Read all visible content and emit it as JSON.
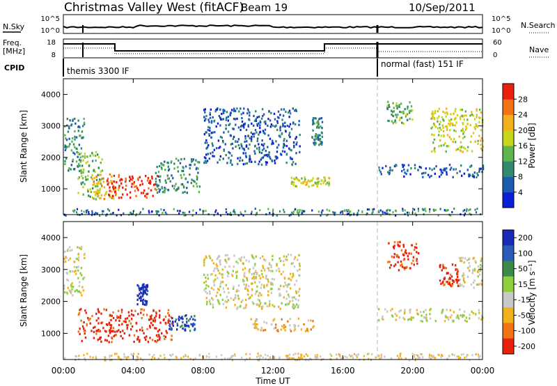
{
  "header": {
    "title": "Christmas Valley West (fitACF)",
    "beam": "Beam 19",
    "date": "10/Sep/2011"
  },
  "noise_panel": {
    "left_label": "N.Sky",
    "left_ticks": [
      "10^5",
      "10^0"
    ],
    "right_ticks": [
      "10^5",
      "10^0"
    ],
    "right_label": "N.Search"
  },
  "freq_panel": {
    "left_label_1": "Freq.",
    "left_label_2": "[MHz]",
    "left_ticks": [
      "18",
      "8"
    ],
    "right_ticks": [
      "60",
      "0"
    ],
    "right_label": "Nave"
  },
  "cpid_panel": {
    "label": "CPID",
    "mode_1": "themis 3300 IF",
    "mode_2": "normal (fast) 151 IF"
  },
  "chart_data": [
    {
      "type": "heatmap",
      "name": "power",
      "ylabel": "Slant Range [km]",
      "y_ticks": [
        "1000",
        "2000",
        "3000",
        "4000"
      ],
      "ylim": [
        180,
        4500
      ],
      "xlim_hours": [
        0,
        24
      ],
      "colorbar_label": "Power [dB]",
      "colorbar_ticks": [
        "4",
        "8",
        "12",
        "16",
        "20",
        "24",
        "28"
      ],
      "colorbar_colors": [
        "#0a1fd6",
        "#1c5cb0",
        "#2f8a6e",
        "#5fb54c",
        "#c8d61a",
        "#f2b01c",
        "#f07414",
        "#e8200c"
      ],
      "regions": [
        {
          "t0": 0.0,
          "t1": 1.2,
          "r0": 1600,
          "r1": 3300,
          "level": 2
        },
        {
          "t0": 0.8,
          "t1": 2.2,
          "r0": 700,
          "r1": 2200,
          "level": 3
        },
        {
          "t0": 1.6,
          "t1": 3.2,
          "r0": 700,
          "r1": 1500,
          "level": 5
        },
        {
          "t0": 2.4,
          "t1": 5.4,
          "r0": 750,
          "r1": 1450,
          "level": 7
        },
        {
          "t0": 5.2,
          "t1": 7.8,
          "r0": 900,
          "r1": 2000,
          "level": 2
        },
        {
          "t0": 8.0,
          "t1": 13.5,
          "r0": 1800,
          "r1": 3600,
          "level": 1
        },
        {
          "t0": 13.0,
          "t1": 15.2,
          "r0": 1100,
          "r1": 1400,
          "level": 4
        },
        {
          "t0": 14.2,
          "t1": 14.8,
          "r0": 2400,
          "r1": 3300,
          "level": 2
        },
        {
          "t0": 18.0,
          "t1": 24.0,
          "r0": 1400,
          "r1": 1800,
          "level": 1
        },
        {
          "t0": 18.5,
          "t1": 20.0,
          "r0": 3100,
          "r1": 3800,
          "level": 3
        },
        {
          "t0": 21.0,
          "t1": 24.0,
          "r0": 2200,
          "r1": 3600,
          "level": 4
        }
      ]
    },
    {
      "type": "heatmap",
      "name": "velocity",
      "ylabel": "Slant Range [km]",
      "y_ticks": [
        "1000",
        "2000",
        "3000",
        "4000"
      ],
      "ylim": [
        180,
        4500
      ],
      "xlim_hours": [
        0,
        24
      ],
      "colorbar_label": "Velocity [m s⁻¹]",
      "colorbar_ticks": [
        "200",
        "100",
        "50",
        "15",
        "-15",
        "-50",
        "-100",
        "-200"
      ],
      "colorbar_colors": [
        "#1a2bb8",
        "#2b5cb8",
        "#3a8a48",
        "#8ecf3c",
        "#c8c8c8",
        "#f2b01c",
        "#f07414",
        "#e8200c"
      ],
      "regions": [
        {
          "t0": 0.0,
          "t1": 1.2,
          "r0": 2200,
          "r1": 3800,
          "level": 4
        },
        {
          "t0": 0.8,
          "t1": 6.2,
          "r0": 750,
          "r1": 1800,
          "level": 7
        },
        {
          "t0": 4.2,
          "t1": 4.8,
          "r0": 1900,
          "r1": 2600,
          "level": 0
        },
        {
          "t0": 6.0,
          "t1": 7.5,
          "r0": 1100,
          "r1": 1600,
          "level": 1
        },
        {
          "t0": 8.0,
          "t1": 13.5,
          "r0": 1800,
          "r1": 3500,
          "level": 4
        },
        {
          "t0": 10.5,
          "t1": 14.5,
          "r0": 1100,
          "r1": 1500,
          "level": 5
        },
        {
          "t0": 18.0,
          "t1": 24.0,
          "r0": 1400,
          "r1": 1800,
          "level": 4
        },
        {
          "t0": 18.5,
          "t1": 20.3,
          "r0": 3000,
          "r1": 3900,
          "level": 7
        },
        {
          "t0": 21.5,
          "t1": 22.6,
          "r0": 2500,
          "r1": 3200,
          "level": 7
        },
        {
          "t0": 22.6,
          "t1": 24.0,
          "r0": 2400,
          "r1": 3400,
          "level": 4
        }
      ]
    }
  ],
  "x_axis": {
    "ticks": [
      "00:00",
      "04:00",
      "08:00",
      "12:00",
      "16:00",
      "20:00",
      "00:00"
    ],
    "label": "Time UT"
  }
}
